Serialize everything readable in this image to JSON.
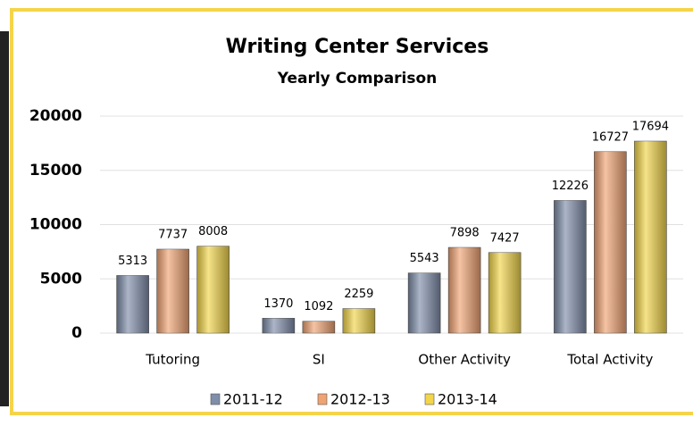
{
  "chart_data": {
    "type": "bar",
    "title": "Writing Center Services",
    "subtitle": "Yearly Comparison",
    "categories": [
      "Tutoring",
      "SI",
      "Other Activity",
      "Total Activity"
    ],
    "series": [
      {
        "name": "2011-12",
        "color": "#7f8eaa",
        "values": [
          5313,
          1370,
          5543,
          12226
        ]
      },
      {
        "name": "2012-13",
        "color": "#f0a474",
        "values": [
          7737,
          1092,
          7898,
          16727
        ]
      },
      {
        "name": "2013-14",
        "color": "#f2d54a",
        "values": [
          8008,
          2259,
          7427,
          17694
        ]
      }
    ],
    "ylim": [
      0,
      20000
    ],
    "yticks": [
      0,
      5000,
      10000,
      15000,
      20000
    ],
    "grid": true,
    "legend": "bottom"
  }
}
